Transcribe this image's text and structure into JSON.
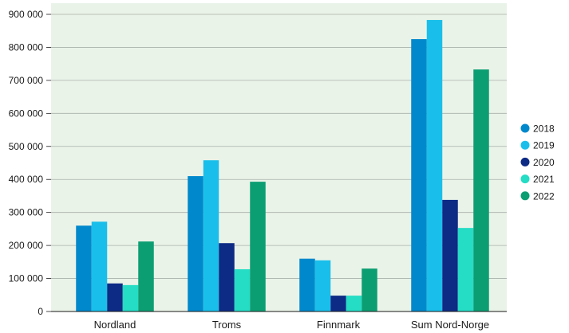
{
  "chart_data": {
    "type": "bar",
    "categories": [
      "Nordland",
      "Troms",
      "Finnmark",
      "Sum Nord-Norge"
    ],
    "series": [
      {
        "name": "2018",
        "color": "#0088CC",
        "values": [
          260000,
          410000,
          160000,
          825000
        ]
      },
      {
        "name": "2019",
        "color": "#19BFEA",
        "values": [
          272000,
          458000,
          155000,
          883000
        ]
      },
      {
        "name": "2020",
        "color": "#0D2A85",
        "values": [
          85000,
          207000,
          48000,
          338000
        ]
      },
      {
        "name": "2021",
        "color": "#25DCC5",
        "values": [
          80000,
          128000,
          48000,
          253000
        ]
      },
      {
        "name": "2022",
        "color": "#0C9E73",
        "values": [
          212000,
          393000,
          130000,
          733000
        ]
      }
    ],
    "y_ticks": [
      "0",
      "100 000",
      "200 000",
      "300 000",
      "400 000",
      "500 000",
      "600 000",
      "700 000",
      "800 000",
      "900 000"
    ],
    "ylim": [
      0,
      900000
    ],
    "grid": true,
    "legend": "right",
    "title": "",
    "xlabel": "",
    "ylabel": "",
    "plot_background": "#EAF3E8"
  }
}
